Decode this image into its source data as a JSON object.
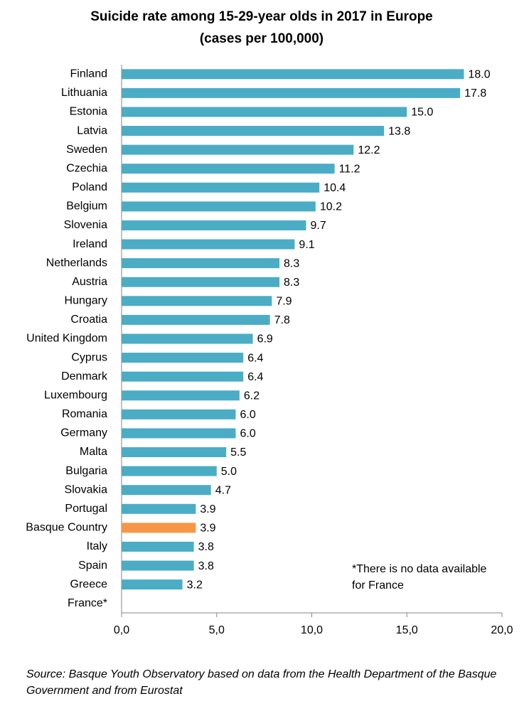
{
  "chart_data": {
    "type": "bar",
    "orientation": "horizontal",
    "title": "Suicide rate among 15-29-year olds in 2017 in Europe",
    "subtitle": "(cases per 100,000)",
    "categories": [
      "Finland",
      "Lithuania",
      "Estonia",
      "Latvia",
      "Sweden",
      "Czechia",
      "Poland",
      "Belgium",
      "Slovenia",
      "Ireland",
      "Netherlands",
      "Austria",
      "Hungary",
      "Croatia",
      "United Kingdom",
      "Cyprus",
      "Denmark",
      "Luxembourg",
      "Romania",
      "Germany",
      "Malta",
      "Bulgaria",
      "Slovakia",
      "Portugal",
      "Basque Country",
      "Italy",
      "Spain",
      "Greece",
      "France*"
    ],
    "values": [
      18.0,
      17.8,
      15.0,
      13.8,
      12.2,
      11.2,
      10.4,
      10.2,
      9.7,
      9.1,
      8.3,
      8.3,
      7.9,
      7.8,
      6.9,
      6.4,
      6.4,
      6.2,
      6.0,
      6.0,
      5.5,
      5.0,
      4.7,
      3.9,
      3.9,
      3.8,
      3.8,
      3.2,
      null
    ],
    "value_labels": [
      "18.0",
      "17.8",
      "15.0",
      "13.8",
      "12.2",
      "11.2",
      "10.4",
      "10.2",
      "9.7",
      "9.1",
      "8.3",
      "8.3",
      "7.9",
      "7.8",
      "6.9",
      "6.4",
      "6.4",
      "6.2",
      "6.0",
      "6.0",
      "5.5",
      "5.0",
      "4.7",
      "3.9",
      "3.9",
      "3.8",
      "3.8",
      "3.2",
      null
    ],
    "colors": [
      "#4bacc6",
      "#4bacc6",
      "#4bacc6",
      "#4bacc6",
      "#4bacc6",
      "#4bacc6",
      "#4bacc6",
      "#4bacc6",
      "#4bacc6",
      "#4bacc6",
      "#4bacc6",
      "#4bacc6",
      "#4bacc6",
      "#4bacc6",
      "#4bacc6",
      "#4bacc6",
      "#4bacc6",
      "#4bacc6",
      "#4bacc6",
      "#4bacc6",
      "#4bacc6",
      "#4bacc6",
      "#4bacc6",
      "#4bacc6",
      "#f79646",
      "#4bacc6",
      "#4bacc6",
      "#4bacc6",
      "#4bacc6"
    ],
    "xlim": [
      0,
      20
    ],
    "xticks": [
      {
        "value": 0,
        "label": "0,0"
      },
      {
        "value": 5,
        "label": "5,0"
      },
      {
        "value": 10,
        "label": "10,0"
      },
      {
        "value": 15,
        "label": "15,0"
      },
      {
        "value": 20,
        "label": "20,0"
      }
    ],
    "grid": false,
    "annotation": "*There is no data available for France",
    "source": "Source: Basque Youth Observatory based on data from the Health Department of the Basque Government and from Eurostat"
  }
}
